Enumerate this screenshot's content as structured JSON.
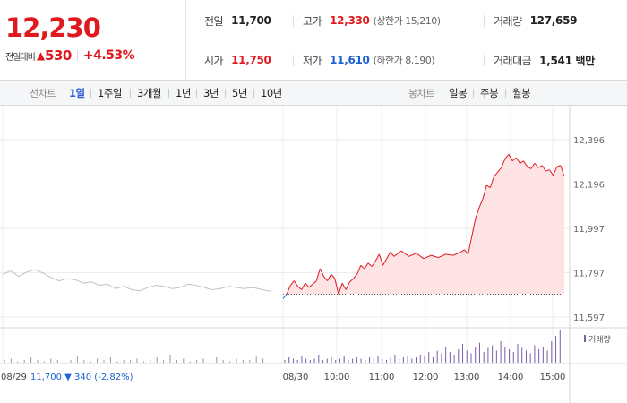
{
  "quote": {
    "price": "12,230",
    "change_label": "전일대비",
    "change_arrow": "▲",
    "change_value": "530",
    "change_rate": "+4.53%"
  },
  "stats": {
    "prev_close": {
      "label": "전일",
      "value": "11,700"
    },
    "open": {
      "label": "시가",
      "value": "11,750"
    },
    "high": {
      "label": "고가",
      "value": "12,330",
      "sub": "(상한가 15,210)"
    },
    "low": {
      "label": "저가",
      "value": "11,610",
      "sub": "(하한가 8,190)"
    },
    "volume": {
      "label": "거래량",
      "value": "127,659"
    },
    "amount": {
      "label": "거래대금",
      "value": "1,541 백만"
    }
  },
  "toolbar": {
    "line_label": "선차트",
    "line_periods": [
      "1일",
      "1주일",
      "3개월",
      "1년",
      "3년",
      "5년",
      "10년"
    ],
    "active_period": "1일",
    "candle_label": "봉차트",
    "candle_periods": [
      "일봉",
      "주봉",
      "월봉"
    ]
  },
  "colors": {
    "up": "#e0191f",
    "down": "#1b61d1",
    "prev_day_line": "#c2c2c2",
    "area_fill": "#fde3e3",
    "volume_today": "#7b5ca8",
    "volume_prev": "#9a9a9a"
  },
  "chart_data": {
    "type": "line",
    "y_ticks": [
      "12,396",
      "12,196",
      "11,997",
      "11,797",
      "11,597"
    ],
    "ylim": [
      11597,
      12396
    ],
    "x_ticks": [
      "08/29",
      "08/30",
      "10:00",
      "11:00",
      "12:00",
      "13:00",
      "14:00",
      "15:00"
    ],
    "baseline": 11700,
    "prev_day_info": {
      "date": "08/29",
      "price": "11,700",
      "arrow": "▼",
      "change": "340",
      "rate": "(-2.82%)"
    },
    "volume_legend": "거래량",
    "prev_day_series": {
      "date": "08/29",
      "x": [
        0,
        0.03,
        0.06,
        0.09,
        0.12,
        0.15,
        0.18,
        0.21,
        0.24,
        0.27,
        0.3,
        0.33,
        0.36,
        0.39,
        0.42,
        0.45,
        0.48,
        0.51,
        0.54,
        0.57,
        0.6,
        0.63,
        0.66,
        0.69,
        0.72,
        0.75,
        0.78,
        0.81,
        0.84,
        0.87,
        0.9,
        0.93,
        0.96,
        1.0
      ],
      "y": [
        11790,
        11805,
        11780,
        11800,
        11810,
        11795,
        11775,
        11760,
        11770,
        11765,
        11750,
        11755,
        11740,
        11745,
        11725,
        11735,
        11720,
        11715,
        11730,
        11740,
        11735,
        11725,
        11730,
        11745,
        11740,
        11730,
        11720,
        11725,
        11735,
        11730,
        11725,
        11730,
        11722,
        11712
      ]
    },
    "today_series": {
      "date": "08/30",
      "time": [
        "09:00",
        "09:05",
        "09:10",
        "09:15",
        "09:20",
        "09:25",
        "09:30",
        "09:35",
        "09:40",
        "09:45",
        "09:50",
        "09:55",
        "10:00",
        "10:05",
        "10:10",
        "10:15",
        "10:20",
        "10:25",
        "10:30",
        "10:35",
        "10:40",
        "10:45",
        "10:50",
        "10:55",
        "11:00",
        "11:05",
        "11:10",
        "11:15",
        "11:20",
        "11:25",
        "11:30",
        "11:40",
        "11:50",
        "12:00",
        "12:10",
        "12:20",
        "12:30",
        "12:40",
        "12:50",
        "13:00",
        "13:05",
        "13:10",
        "13:15",
        "13:20",
        "13:25",
        "13:30",
        "13:35",
        "13:40",
        "13:45",
        "13:50",
        "13:55",
        "14:00",
        "14:05",
        "14:10",
        "14:15",
        "14:20",
        "14:25",
        "14:30",
        "14:35",
        "14:40",
        "14:45",
        "14:50",
        "14:55",
        "15:00",
        "15:05",
        "15:10",
        "15:15",
        "15:20"
      ],
      "price": [
        11680,
        11700,
        11740,
        11760,
        11735,
        11720,
        11750,
        11730,
        11745,
        11760,
        11815,
        11780,
        11760,
        11790,
        11770,
        11700,
        11750,
        11720,
        11755,
        11770,
        11790,
        11830,
        11815,
        11840,
        11825,
        11850,
        11880,
        11830,
        11860,
        11890,
        11870,
        11895,
        11870,
        11885,
        11860,
        11875,
        11865,
        11880,
        11875,
        11890,
        11900,
        11880,
        11960,
        12040,
        12090,
        12130,
        12190,
        12180,
        12230,
        12250,
        12270,
        12310,
        12330,
        12300,
        12315,
        12290,
        12300,
        12275,
        12265,
        12290,
        12270,
        12280,
        12255,
        12260,
        12235,
        12275,
        12280,
        12230
      ]
    },
    "volume": {
      "prev_day": [
        2,
        3,
        1,
        2,
        4,
        2,
        1,
        3,
        2,
        1,
        2,
        5,
        2,
        1,
        3,
        2,
        4,
        1,
        2,
        2,
        3,
        1,
        2,
        4,
        2,
        6,
        2,
        3,
        1,
        2,
        3,
        2,
        4,
        2,
        1,
        3,
        2,
        2,
        5,
        3
      ],
      "today": [
        2,
        4,
        3,
        2,
        5,
        3,
        2,
        3,
        6,
        2,
        3,
        4,
        2,
        3,
        5,
        2,
        3,
        4,
        3,
        2,
        4,
        3,
        5,
        3,
        2,
        4,
        6,
        3,
        4,
        5,
        3,
        4,
        6,
        5,
        8,
        4,
        9,
        7,
        12,
        8,
        6,
        10,
        14,
        9,
        7,
        12,
        15,
        8,
        11,
        13,
        9,
        16,
        12,
        10,
        8,
        14,
        11,
        9,
        7,
        13,
        10,
        12,
        9,
        16,
        20,
        24
      ]
    }
  }
}
